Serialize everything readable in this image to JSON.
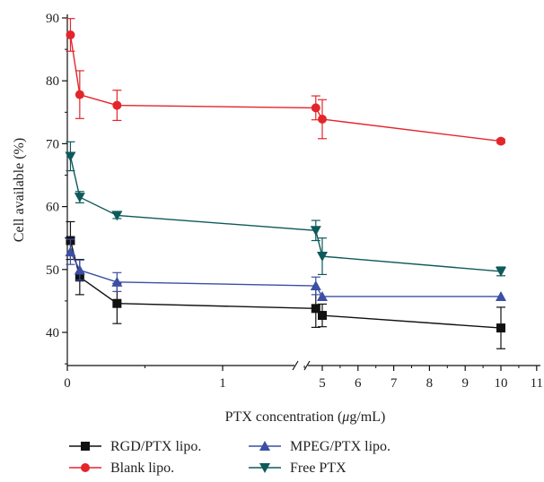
{
  "chart_data": {
    "type": "line",
    "title": "",
    "xlabel_parts": [
      "PTX concentration (",
      "μ",
      "g/mL)"
    ],
    "ylabel": "Cell available (%)",
    "ylim": [
      35,
      90
    ],
    "grid": false,
    "legend_position": "bottom",
    "x_axis": {
      "type": "broken",
      "segment1": {
        "range": [
          0,
          2
        ],
        "ticks": [
          0,
          1
        ]
      },
      "segment2": {
        "range": [
          4,
          11
        ],
        "ticks": [
          5,
          6,
          7,
          8,
          9,
          10,
          11
        ]
      },
      "break_between": [
        1.9,
        4
      ]
    },
    "y_ticks": [
      40,
      50,
      60,
      70,
      80,
      90
    ],
    "x": [
      0.02,
      0.08,
      0.32,
      1.6,
      5,
      10
    ],
    "series": [
      {
        "name": "RGD/PTX lipo.",
        "color": "#111111",
        "marker": "square",
        "values": [
          54.6,
          48.8,
          44.6,
          43.8,
          42.7,
          40.7
        ],
        "errors": [
          3.0,
          2.8,
          3.2,
          3.0,
          1.8,
          3.3
        ]
      },
      {
        "name": "Blank lipo.",
        "color": "#e3262b",
        "marker": "circle",
        "values": [
          87.3,
          77.8,
          76.1,
          75.7,
          73.9,
          70.4
        ],
        "errors": [
          2.6,
          3.8,
          2.4,
          1.9,
          3.1,
          0.3
        ]
      },
      {
        "name": "MPEG/PTX lipo.",
        "color": "#3b4fa3",
        "marker": "triangle-up",
        "values": [
          52.8,
          49.9,
          48.0,
          47.4,
          45.7,
          45.7
        ],
        "errors": [
          2.0,
          1.6,
          1.5,
          1.4,
          0.0,
          0.0
        ]
      },
      {
        "name": "Free PTX",
        "color": "#0e5a5a",
        "marker": "triangle-down",
        "values": [
          68.0,
          61.5,
          58.6,
          56.2,
          52.1,
          49.7
        ],
        "errors": [
          2.3,
          0.9,
          0.5,
          1.6,
          2.9,
          0.7
        ]
      }
    ]
  }
}
